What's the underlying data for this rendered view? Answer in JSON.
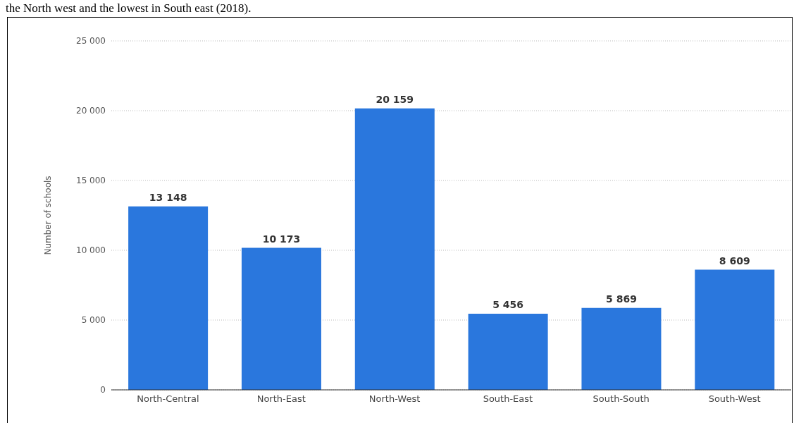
{
  "chart_data": {
    "type": "bar",
    "annotations": [
      "the North west and the lowest in South east (2018)."
    ],
    "ylabel": "Number of schools",
    "categories": [
      "North-Central",
      "North-East",
      "North-West",
      "South-East",
      "South-South",
      "South-West"
    ],
    "values": [
      13148,
      10173,
      20159,
      5456,
      5869,
      8609
    ],
    "value_labels": [
      "13 148",
      "10 173",
      "20 159",
      "5 456",
      "5 869",
      "8 609"
    ],
    "color": "#2a77dd",
    "ylim": [
      0,
      25000
    ],
    "yticks": [
      {
        "value": 0,
        "label": "0"
      },
      {
        "value": 5000,
        "label": "5 000"
      },
      {
        "value": 10000,
        "label": "10 000"
      },
      {
        "value": 15000,
        "label": "15 000"
      },
      {
        "value": 20000,
        "label": "20 000"
      },
      {
        "value": 25000,
        "label": "25 000"
      }
    ],
    "grid": "y",
    "legend": false
  }
}
